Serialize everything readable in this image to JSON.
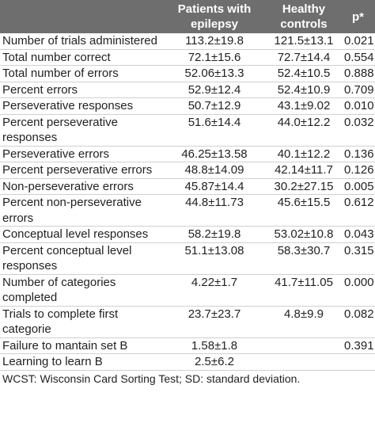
{
  "table": {
    "header": [
      "Patients with epilepsy",
      "Healthy controls",
      "p*"
    ],
    "rows": [
      [
        "Number of trials administered",
        "113.2±19.8",
        "121.5±13.1",
        "0.021"
      ],
      [
        "Total number correct",
        "72.1±15.6",
        "72.7±14.4",
        "0.554"
      ],
      [
        "Total number of errors",
        "52.06±13.3",
        "52.4±10.5",
        "0.888"
      ],
      [
        "Percent errors",
        "52.9±12.4",
        "52.4±10.9",
        "0.709"
      ],
      [
        "Perseverative responses",
        "50.7±12.9",
        "43.1±9.02",
        "0.010"
      ],
      [
        "Percent perseverative responses",
        "51.6±14.4",
        "44.0±12.2",
        "0.032"
      ],
      [
        "Perseverative errors",
        "46.25±13.58",
        "40.1±12.2",
        "0.136"
      ],
      [
        "Percent perseverative errors",
        "48.8±14.09",
        "42.14±11.7",
        "0.126"
      ],
      [
        "Non-perseverative errors",
        "45.87±14.4",
        "30.2±27.15",
        "0.005"
      ],
      [
        "Percent non-perseverative errors",
        "44.8±11.73",
        "45.6±15.5",
        "0.612"
      ],
      [
        "Conceptual level responses",
        "58.2±19.8",
        "53.02±10.8",
        "0.043"
      ],
      [
        "Percent conceptual level responses",
        "51.1±13.08",
        "58.3±30.7",
        "0.315"
      ],
      [
        "Number of categories completed",
        "4.22±1.7",
        "41.7±11.05",
        "0.000"
      ],
      [
        "Trials to complete first categorie",
        "23.7±23.7",
        "4.8±9.9",
        "0.082"
      ],
      [
        "Failure to mantain set B",
        "1.58±1.8",
        "",
        "0.391"
      ],
      [
        "Learning to learn B",
        "2.5±6.2"
      ]
    ],
    "footnote": "WCST: Wisconsin Card Sorting Test; SD: standard deviation."
  }
}
